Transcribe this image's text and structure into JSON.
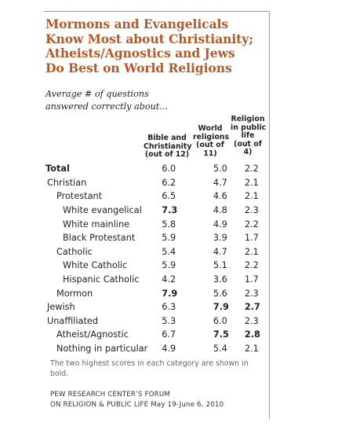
{
  "title_lines": [
    "Mormons and Evangelicals",
    "Know Most about Christianity;",
    "Atheists/Agnostics and Jews",
    "Do Best on World Religions"
  ],
  "subtitle_lines": [
    "Average # of questions",
    "answered correctly about..."
  ],
  "columns": [
    {
      "lines": [
        "Bible and",
        "Christianity",
        "(out of 12)"
      ]
    },
    {
      "lines": [
        "World",
        "religions",
        "(out of",
        "11)"
      ]
    },
    {
      "lines": [
        "Religion",
        "in public",
        "life",
        "(out of",
        "4)"
      ]
    }
  ],
  "colors": {
    "title": "#b25a2a",
    "text": "#222222",
    "footnote": "#666666",
    "frame": "#9a9a9a"
  },
  "chart_data": {
    "type": "table",
    "title": "Mormons and Evangelicals Know Most about Christianity; Atheists/Agnostics and Jews Do Best on World Religions",
    "subtitle": "Average # of questions answered correctly about...",
    "columns": [
      "Bible and Christianity (out of 12)",
      "World religions (out of 11)",
      "Religion in public life (out of 4)"
    ],
    "rows": [
      {
        "label": "Total",
        "level": 0,
        "label_bold": true,
        "values": [
          "6.0",
          "5.0",
          "2.2"
        ],
        "bold": [
          false,
          false,
          false
        ]
      },
      {
        "label": "Christian",
        "level": 1,
        "label_bold": false,
        "values": [
          "6.2",
          "4.7",
          "2.1"
        ],
        "bold": [
          false,
          false,
          false
        ]
      },
      {
        "label": "Protestant",
        "level": 2,
        "label_bold": false,
        "values": [
          "6.5",
          "4.6",
          "2.1"
        ],
        "bold": [
          false,
          false,
          false
        ]
      },
      {
        "label": "White evangelical",
        "level": 3,
        "label_bold": false,
        "values": [
          "7.3",
          "4.8",
          "2.3"
        ],
        "bold": [
          true,
          false,
          false
        ]
      },
      {
        "label": "White mainline",
        "level": 3,
        "label_bold": false,
        "values": [
          "5.8",
          "4.9",
          "2.2"
        ],
        "bold": [
          false,
          false,
          false
        ]
      },
      {
        "label": "Black Protestant",
        "level": 3,
        "label_bold": false,
        "values": [
          "5.9",
          "3.9",
          "1.7"
        ],
        "bold": [
          false,
          false,
          false
        ]
      },
      {
        "label": "Catholic",
        "level": 2,
        "label_bold": false,
        "values": [
          "5.4",
          "4.7",
          "2.1"
        ],
        "bold": [
          false,
          false,
          false
        ]
      },
      {
        "label": "White Catholic",
        "level": 3,
        "label_bold": false,
        "values": [
          "5.9",
          "5.1",
          "2.2"
        ],
        "bold": [
          false,
          false,
          false
        ]
      },
      {
        "label": "Hispanic Catholic",
        "level": 3,
        "label_bold": false,
        "values": [
          "4.2",
          "3.6",
          "1.7"
        ],
        "bold": [
          false,
          false,
          false
        ]
      },
      {
        "label": "Mormon",
        "level": 2,
        "label_bold": false,
        "values": [
          "7.9",
          "5.6",
          "2.3"
        ],
        "bold": [
          true,
          false,
          false
        ]
      },
      {
        "label": "Jewish",
        "level": 1,
        "label_bold": false,
        "values": [
          "6.3",
          "7.9",
          "2.7"
        ],
        "bold": [
          false,
          true,
          true
        ]
      },
      {
        "label": "Unaffiliated",
        "level": 1,
        "label_bold": false,
        "values": [
          "5.3",
          "6.0",
          "2.3"
        ],
        "bold": [
          false,
          false,
          false
        ]
      },
      {
        "label": "Atheist/Agnostic",
        "level": 2,
        "label_bold": false,
        "values": [
          "6.7",
          "7.5",
          "2.8"
        ],
        "bold": [
          false,
          true,
          true
        ]
      },
      {
        "label": "Nothing in particular",
        "level": 2,
        "label_bold": false,
        "values": [
          "4.9",
          "5.4",
          "2.1"
        ],
        "bold": [
          false,
          false,
          false
        ]
      }
    ]
  },
  "footnote_lines": [
    "The two highest scores in each category are shown in",
    "bold."
  ],
  "source_lines": [
    "PEW RESEARCH CENTER’S FORUM",
    "ON RELIGION  & PUBLIC LIFE May 19-June 6, 2010"
  ]
}
